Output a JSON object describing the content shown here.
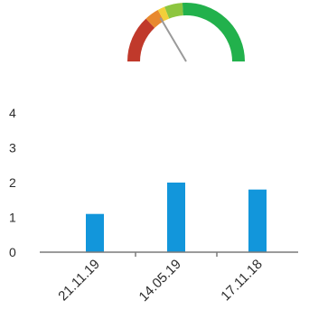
{
  "gauge": {
    "segments": [
      {
        "color": "#c0392b",
        "from": 0.0,
        "to": 0.26
      },
      {
        "color": "#e8892f",
        "from": 0.26,
        "to": 0.34
      },
      {
        "color": "#f2cf3a",
        "from": 0.34,
        "to": 0.38
      },
      {
        "color": "#8dc63f",
        "from": 0.38,
        "to": 0.48
      },
      {
        "color": "#22b14c",
        "from": 0.48,
        "to": 1.0
      }
    ],
    "needle_value": 0.33,
    "needle_color": "#9a9a9a"
  },
  "chart_data": {
    "type": "bar",
    "categories": [
      "21.11.19",
      "14.05.19",
      "17.11.18"
    ],
    "values": [
      1.1,
      2.0,
      1.8
    ],
    "ylim": [
      0,
      4
    ],
    "yticks": [
      "0",
      "1",
      "2",
      "3",
      "4"
    ],
    "title": "",
    "xlabel": "",
    "ylabel": "",
    "bar_color": "#1296db",
    "axis_color": "#7a7a7a",
    "grid": false,
    "legend": "none"
  }
}
